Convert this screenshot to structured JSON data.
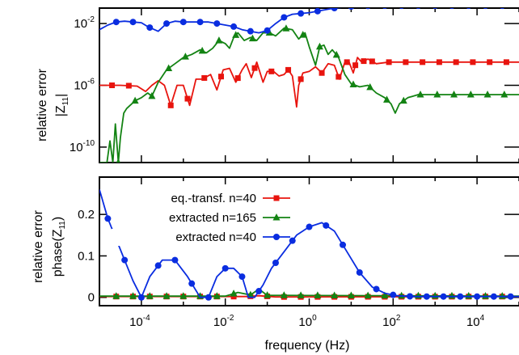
{
  "chart_data": [
    {
      "type": "line",
      "panel": "top",
      "ylabel_line1": "relative error",
      "ylabel_line2": "|Z",
      "ylabel_sub": "11",
      "ylabel_close": "|",
      "yscale": "log",
      "xscale": "log",
      "xlim": [
        1e-05,
        100000.0
      ],
      "ylim": [
        1e-11,
        0.1
      ],
      "yticks": [
        {
          "exp": -2,
          "base": "10",
          "sup": "-2"
        },
        {
          "exp": -6,
          "base": "10",
          "sup": "-6"
        },
        {
          "exp": -10,
          "base": "10",
          "sup": "-10"
        }
      ],
      "series": [
        {
          "name": "eq.-transf. n=40",
          "color": "#e8140e",
          "marker": "square",
          "points": [
            [
              -5.0,
              -6
            ],
            [
              -4.5,
              -6
            ],
            [
              -4.1,
              -6.05
            ],
            [
              -3.9,
              -6.4
            ],
            [
              -3.75,
              -6.0
            ],
            [
              -3.6,
              -5.7
            ],
            [
              -3.45,
              -6.0
            ],
            [
              -3.3,
              -7.3
            ],
            [
              -3.15,
              -6.0
            ],
            [
              -3.0,
              -6.0
            ],
            [
              -2.85,
              -7.3
            ],
            [
              -2.7,
              -5.6
            ],
            [
              -2.55,
              -5.6
            ],
            [
              -2.35,
              -5.3
            ],
            [
              -2.2,
              -6.3
            ],
            [
              -2.05,
              -5.0
            ],
            [
              -1.9,
              -4.9
            ],
            [
              -1.75,
              -5.8
            ],
            [
              -1.6,
              -5.0
            ],
            [
              -1.5,
              -4.6
            ],
            [
              -1.38,
              -5.5
            ],
            [
              -1.25,
              -4.5
            ],
            [
              -1.1,
              -5.8
            ],
            [
              -1.0,
              -5.1
            ],
            [
              -0.85,
              -5.1
            ],
            [
              -0.72,
              -5.4
            ],
            [
              -0.6,
              -5.3
            ],
            [
              -0.5,
              -5.0
            ],
            [
              -0.4,
              -5.4
            ],
            [
              -0.3,
              -7.4
            ],
            [
              -0.25,
              -6.0
            ],
            [
              -0.15,
              -5.2
            ],
            [
              0.0,
              -5.1
            ],
            [
              0.15,
              -4.8
            ],
            [
              0.3,
              -5.2
            ],
            [
              0.45,
              -4.6
            ],
            [
              0.6,
              -4.7
            ],
            [
              0.72,
              -5.6
            ],
            [
              0.85,
              -4.5
            ],
            [
              0.95,
              -4.5
            ],
            [
              1.05,
              -5.2
            ],
            [
              1.15,
              -4.2
            ],
            [
              1.25,
              -4.5
            ],
            [
              1.4,
              -4.3
            ],
            [
              1.6,
              -4.6
            ],
            [
              1.9,
              -4.5
            ],
            [
              2.5,
              -4.5
            ],
            [
              3.0,
              -4.5
            ],
            [
              4.0,
              -4.5
            ],
            [
              5.0,
              -4.5
            ]
          ],
          "marker_x": [
            -4.7,
            -4.3,
            -3.3,
            -2.9,
            -2.5,
            -2.1,
            -1.7,
            -1.3,
            -0.9,
            -0.5,
            -0.2,
            0.3,
            0.7,
            0.9,
            1.1,
            1.3,
            1.5,
            1.9,
            2.3,
            2.7,
            3.1,
            3.5,
            3.9,
            4.3,
            4.7
          ]
        },
        {
          "name": "extracted n=165",
          "color": "#138313",
          "marker": "triangle",
          "points": [
            [
              -5.0,
              -11
            ],
            [
              -4.82,
              -11
            ],
            [
              -4.75,
              -9.6
            ],
            [
              -4.68,
              -11
            ],
            [
              -4.62,
              -8.5
            ],
            [
              -4.55,
              -11
            ],
            [
              -4.5,
              -9.4
            ],
            [
              -4.42,
              -7.8
            ],
            [
              -4.35,
              -7.5
            ],
            [
              -4.15,
              -7.0
            ],
            [
              -4.0,
              -6.8
            ],
            [
              -3.85,
              -6.5
            ],
            [
              -3.75,
              -6.7
            ],
            [
              -3.6,
              -5.8
            ],
            [
              -3.4,
              -5.0
            ],
            [
              -3.2,
              -4.6
            ],
            [
              -3.0,
              -4.2
            ],
            [
              -2.8,
              -4.0
            ],
            [
              -2.6,
              -3.7
            ],
            [
              -2.45,
              -3.9
            ],
            [
              -2.3,
              -3.6
            ],
            [
              -2.15,
              -3.1
            ],
            [
              -2.0,
              -3.3
            ],
            [
              -1.9,
              -3.6
            ],
            [
              -1.8,
              -2.9
            ],
            [
              -1.7,
              -2.6
            ],
            [
              -1.55,
              -3.1
            ],
            [
              -1.4,
              -2.9
            ],
            [
              -1.25,
              -3.1
            ],
            [
              -1.1,
              -2.6
            ],
            [
              -0.95,
              -2.6
            ],
            [
              -0.8,
              -2.8
            ],
            [
              -0.6,
              -2.3
            ],
            [
              -0.4,
              -2.4
            ],
            [
              -0.25,
              -3.0
            ],
            [
              -0.1,
              -2.6
            ],
            [
              0.0,
              -3.5
            ],
            [
              0.15,
              -4.7
            ],
            [
              0.25,
              -3.5
            ],
            [
              0.35,
              -3.4
            ],
            [
              0.45,
              -4.0
            ],
            [
              0.55,
              -3.7
            ],
            [
              0.7,
              -4.2
            ],
            [
              0.85,
              -5.3
            ],
            [
              1.0,
              -5.9
            ],
            [
              1.2,
              -6.1
            ],
            [
              1.4,
              -6.0
            ],
            [
              1.6,
              -6.5
            ],
            [
              1.8,
              -6.8
            ],
            [
              1.95,
              -7.2
            ],
            [
              2.05,
              -7.8
            ],
            [
              2.15,
              -7.2
            ],
            [
              2.35,
              -6.8
            ],
            [
              2.6,
              -6.6
            ],
            [
              3.0,
              -6.6
            ],
            [
              4.0,
              -6.6
            ],
            [
              5.0,
              -6.6
            ]
          ],
          "marker_x": [
            -4.55,
            -4.15,
            -3.75,
            -3.35,
            -2.95,
            -2.55,
            -2.15,
            -1.75,
            -1.35,
            -0.95,
            -0.55,
            -0.15,
            0.25,
            0.65,
            1.05,
            1.45,
            1.85,
            2.25,
            2.65,
            3.05,
            3.45,
            3.85,
            4.25,
            4.65
          ]
        },
        {
          "name": "extracted n=40",
          "color": "#0a2de0",
          "marker": "circle",
          "points": [
            [
              -5.0,
              -2.4
            ],
            [
              -4.8,
              -2.1
            ],
            [
              -4.6,
              -1.9
            ],
            [
              -4.4,
              -1.85
            ],
            [
              -4.2,
              -1.9
            ],
            [
              -4.0,
              -1.95
            ],
            [
              -3.85,
              -2.2
            ],
            [
              -3.6,
              -2.5
            ],
            [
              -3.4,
              -2.0
            ],
            [
              -3.2,
              -1.85
            ],
            [
              -3.0,
              -1.9
            ],
            [
              -2.8,
              -1.9
            ],
            [
              -2.6,
              -1.9
            ],
            [
              -2.4,
              -1.9
            ],
            [
              -2.2,
              -2.0
            ],
            [
              -2.0,
              -2.1
            ],
            [
              -1.8,
              -2.2
            ],
            [
              -1.6,
              -2.4
            ],
            [
              -1.4,
              -2.5
            ],
            [
              -1.2,
              -2.6
            ],
            [
              -1.0,
              -2.45
            ],
            [
              -0.8,
              -2.0
            ],
            [
              -0.6,
              -1.6
            ],
            [
              -0.4,
              -1.4
            ],
            [
              -0.2,
              -1.35
            ],
            [
              0.0,
              -1.3
            ],
            [
              0.2,
              -1.2
            ],
            [
              0.4,
              -1.1
            ],
            [
              0.6,
              -1.0
            ],
            [
              0.8,
              -0.95
            ],
            [
              1.0,
              -0.9
            ],
            [
              1.5,
              -0.85
            ],
            [
              2.0,
              -0.85
            ],
            [
              3.0,
              -0.85
            ],
            [
              4.0,
              -0.85
            ],
            [
              5.0,
              -0.85
            ]
          ],
          "marker_x": [
            -4.6,
            -4.2,
            -3.8,
            -3.4,
            -3.0,
            -2.6,
            -2.2,
            -1.8,
            -1.4,
            -1.0,
            -0.6,
            -0.2,
            0.2,
            0.6,
            1.0,
            1.4,
            1.8,
            2.2,
            2.6,
            3.0,
            3.4,
            3.8,
            4.2,
            4.6
          ]
        }
      ]
    },
    {
      "type": "line",
      "panel": "bottom",
      "ylabel_line1": "relative error",
      "ylabel_line2": "phase(Z",
      "ylabel_sub": "11",
      "ylabel_close": ")",
      "xlabel": "frequency (Hz)",
      "xscale": "log",
      "xlim": [
        1e-05,
        100000.0
      ],
      "ylim": [
        -0.02,
        0.29
      ],
      "yticks": [
        {
          "value": 0.2,
          "label": "0.2"
        },
        {
          "value": 0.1,
          "label": "0.1"
        },
        {
          "value": 0,
          "label": "0"
        }
      ],
      "xticks": [
        {
          "exp": -4,
          "base": "10",
          "sup": "-4"
        },
        {
          "exp": -2,
          "base": "10",
          "sup": "-2"
        },
        {
          "exp": 0,
          "base": "10",
          "sup": "0"
        },
        {
          "exp": 2,
          "base": "10",
          "sup": "2"
        },
        {
          "exp": 4,
          "base": "10",
          "sup": "4"
        }
      ],
      "legend": {
        "position": "top-left",
        "entries": [
          {
            "name": "eq.-transf. n=40",
            "color": "#e8140e",
            "marker": "square"
          },
          {
            "name": "extracted n=165",
            "color": "#138313",
            "marker": "triangle"
          },
          {
            "name": "extracted n=40",
            "color": "#0a2de0",
            "marker": "circle"
          }
        ]
      },
      "series": [
        {
          "name": "eq.-transf. n=40",
          "color": "#e8140e",
          "marker": "square",
          "points": [
            [
              -5.0,
              0.002
            ],
            [
              -1.5,
              0.002
            ],
            [
              -1.2,
              0.004
            ],
            [
              -0.8,
              0.001
            ],
            [
              5.0,
              0.002
            ]
          ],
          "marker_x": [
            -4.6,
            -4.2,
            -3.8,
            -3.4,
            -3.0,
            -2.6,
            -2.2,
            -1.8,
            -1.4,
            -1.0,
            -0.6,
            -0.2,
            0.2,
            0.6,
            1.0,
            1.4,
            1.8,
            2.2,
            2.6,
            3.0,
            3.4,
            3.8,
            4.2,
            4.6
          ]
        },
        {
          "name": "extracted n=165",
          "color": "#138313",
          "marker": "triangle",
          "points": [
            [
              -5.0,
              0.003
            ],
            [
              -2.0,
              0.003
            ],
            [
              -1.7,
              0.012
            ],
            [
              -1.4,
              0.006
            ],
            [
              -1.2,
              0.02
            ],
            [
              -1.0,
              0.005
            ],
            [
              5.0,
              0.003
            ]
          ],
          "marker_x": [
            -4.6,
            -4.2,
            -3.8,
            -3.4,
            -3.0,
            -2.6,
            -2.2,
            -1.8,
            -1.4,
            -1.0,
            -0.6,
            -0.2,
            0.2,
            0.6,
            1.0,
            1.4,
            1.8,
            2.2,
            2.6,
            3.0,
            3.4,
            3.8,
            4.2,
            4.6
          ]
        },
        {
          "name": "extracted n=40",
          "color": "#0a2de0",
          "marker": "circle",
          "points": [
            [
              -5.0,
              0.26
            ],
            [
              -4.8,
              0.19
            ],
            [
              -4.6,
              0.14
            ],
            [
              -4.4,
              0.09
            ],
            [
              -4.2,
              0.04
            ],
            [
              -4.0,
              0.0
            ],
            [
              -3.8,
              0.05
            ],
            [
              -3.5,
              0.09
            ],
            [
              -3.2,
              0.09
            ],
            [
              -2.9,
              0.05
            ],
            [
              -2.6,
              0.0
            ],
            [
              -2.4,
              0.0
            ],
            [
              -2.2,
              0.05
            ],
            [
              -2.0,
              0.07
            ],
            [
              -1.8,
              0.07
            ],
            [
              -1.6,
              0.05
            ],
            [
              -1.45,
              0.0
            ],
            [
              -1.3,
              0.0
            ],
            [
              -1.1,
              0.03
            ],
            [
              -0.9,
              0.07
            ],
            [
              -0.6,
              0.11
            ],
            [
              -0.3,
              0.15
            ],
            [
              0.0,
              0.17
            ],
            [
              0.3,
              0.18
            ],
            [
              0.6,
              0.16
            ],
            [
              0.9,
              0.11
            ],
            [
              1.2,
              0.06
            ],
            [
              1.5,
              0.025
            ],
            [
              1.8,
              0.01
            ],
            [
              2.1,
              0.004
            ],
            [
              2.5,
              0.002
            ],
            [
              3.0,
              0.002
            ],
            [
              5.0,
              0.002
            ]
          ],
          "marker_x": [
            -4.8,
            -4.4,
            -4.0,
            -3.6,
            -3.2,
            -2.8,
            -2.4,
            -2.0,
            -1.6,
            -1.2,
            -0.8,
            -0.4,
            0.0,
            0.4,
            0.8,
            1.2,
            1.6,
            2.0,
            2.4,
            2.8,
            3.2,
            3.6,
            4.0,
            4.4,
            4.8
          ]
        }
      ]
    }
  ]
}
